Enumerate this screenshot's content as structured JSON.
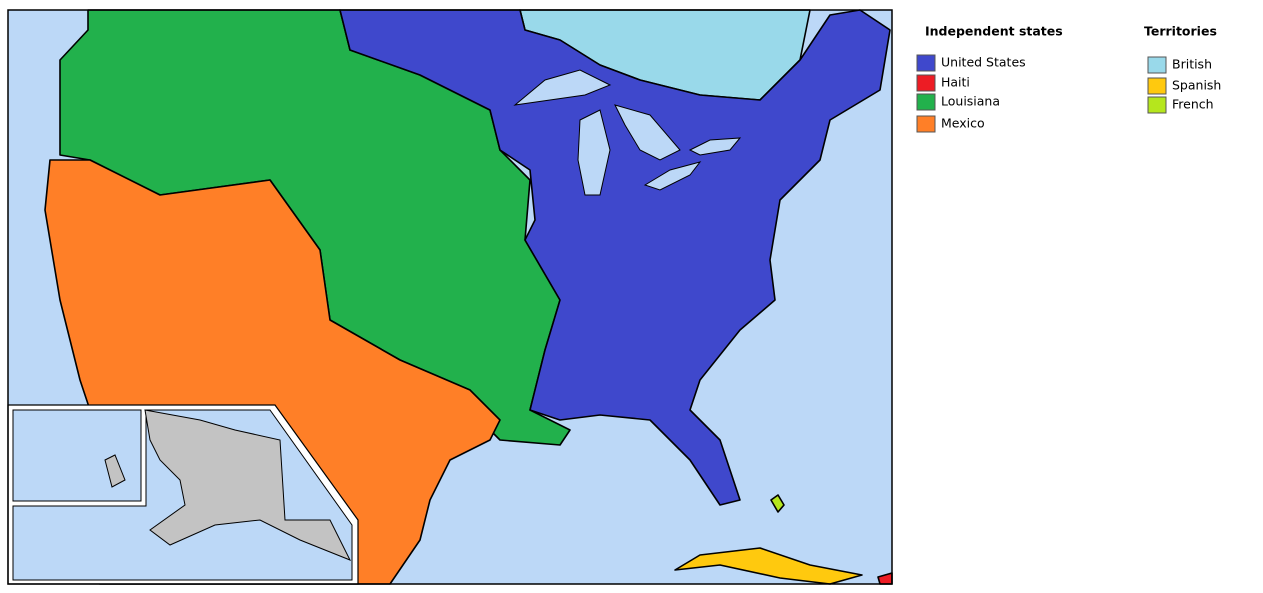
{
  "legend": {
    "independent": {
      "title": "Independent states",
      "items": [
        {
          "label": "United States",
          "color": "#3f48cc"
        },
        {
          "label": "Haiti",
          "color": "#ed1c24"
        },
        {
          "label": "Louisiana",
          "color": "#22b14c"
        },
        {
          "label": "Mexico",
          "color": "#ff7f27"
        }
      ]
    },
    "territories": {
      "title": "Territories",
      "items": [
        {
          "label": "British",
          "color": "#99d9ea"
        },
        {
          "label": "Spanish",
          "color": "#ffc90e"
        },
        {
          "label": "French",
          "color": "#b5e61d"
        }
      ]
    }
  }
}
